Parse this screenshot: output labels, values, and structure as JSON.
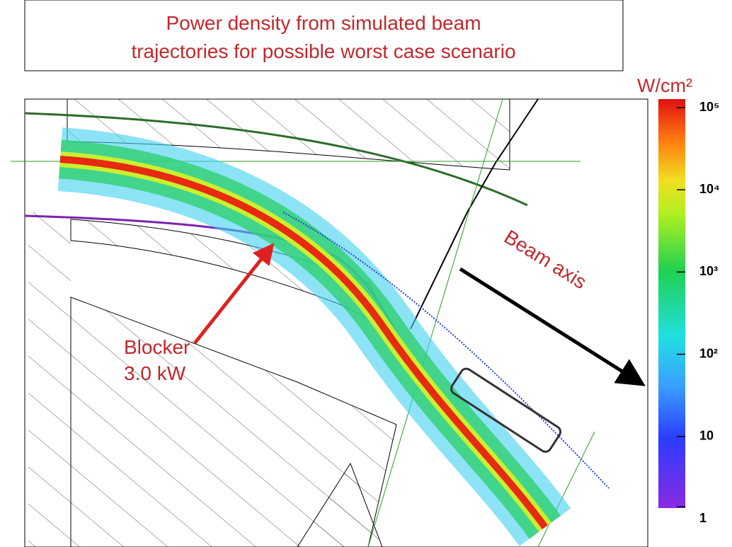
{
  "title": {
    "lines": [
      "Power density from simulated beam",
      "trajectories for possible worst case scenario"
    ]
  },
  "colorbar": {
    "label": "W/cm²",
    "scale": "log",
    "lim": [
      1,
      100000
    ],
    "ticks": [
      1,
      10,
      {
        "value": 100,
        "label": "10²"
      },
      {
        "value": 1000,
        "label": "10³"
      },
      {
        "value": 10000,
        "label": "10⁴"
      },
      {
        "value": 100000,
        "label": "10⁵"
      }
    ]
  },
  "annotations": {
    "beam_axis": "Beam axis",
    "blocker": [
      "Blocker",
      "3.0 kW"
    ]
  }
}
